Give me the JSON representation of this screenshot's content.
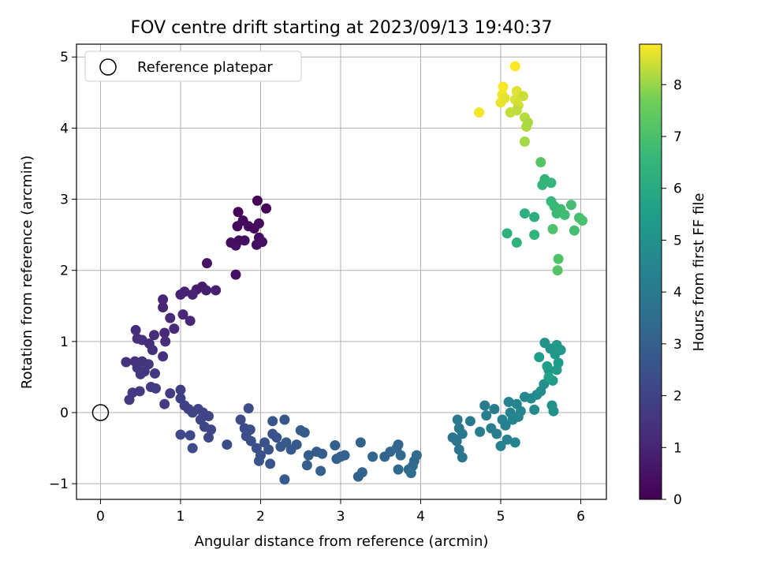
{
  "chart_data": {
    "type": "scatter",
    "title": "FOV centre drift starting at 2023/09/13 19:40:37",
    "xlabel": "Angular distance from reference (arcmin)",
    "ylabel": "Rotation from reference (arcmin)",
    "xlim": [
      -0.3,
      6.32
    ],
    "ylim": [
      -1.22,
      5.18
    ],
    "xticks": [
      0,
      1,
      2,
      3,
      4,
      5,
      6
    ],
    "yticks": [
      -1,
      0,
      1,
      2,
      3,
      4,
      5
    ],
    "grid": true,
    "legend": {
      "placement": "top-left",
      "entries": [
        "Reference platepar"
      ]
    },
    "reference_point": {
      "x": 0,
      "y": 0
    },
    "colorbar": {
      "label": "Hours from first FF file",
      "colormap": "viridis",
      "range": [
        0,
        8.78
      ],
      "ticks": [
        0,
        1,
        2,
        3,
        4,
        5,
        6,
        7,
        8
      ]
    },
    "points": [
      [
        1.72,
        2.82,
        0.15
      ],
      [
        1.78,
        2.7,
        0.2
      ],
      [
        1.96,
        2.98,
        0.1
      ],
      [
        2.07,
        2.87,
        0.18
      ],
      [
        1.71,
        2.62,
        0.25
      ],
      [
        1.85,
        2.62,
        0.3
      ],
      [
        1.92,
        2.59,
        0.22
      ],
      [
        1.98,
        2.66,
        0.28
      ],
      [
        1.63,
        2.39,
        0.35
      ],
      [
        1.73,
        2.42,
        0.32
      ],
      [
        1.8,
        2.42,
        0.38
      ],
      [
        1.95,
        2.36,
        0.4
      ],
      [
        1.98,
        2.46,
        0.33
      ],
      [
        2.02,
        2.4,
        0.42
      ],
      [
        1.69,
        1.94,
        0.5
      ],
      [
        1.33,
        2.1,
        0.55
      ],
      [
        1.69,
        2.35,
        0.45
      ],
      [
        1.27,
        1.77,
        0.7
      ],
      [
        1.2,
        1.73,
        0.75
      ],
      [
        1.32,
        1.72,
        0.8
      ],
      [
        1.44,
        1.72,
        0.85
      ],
      [
        1.05,
        1.7,
        0.9
      ],
      [
        1.15,
        1.66,
        0.95
      ],
      [
        1.0,
        1.66,
        0.92
      ],
      [
        0.78,
        1.59,
        1.0
      ],
      [
        0.78,
        1.48,
        1.05
      ],
      [
        1.03,
        1.38,
        1.1
      ],
      [
        1.12,
        1.29,
        1.12
      ],
      [
        0.87,
        1.33,
        1.15
      ],
      [
        0.92,
        1.18,
        1.18
      ],
      [
        0.8,
        1.12,
        1.2
      ],
      [
        0.67,
        1.09,
        1.22
      ],
      [
        0.81,
        1.0,
        1.25
      ],
      [
        0.44,
        1.16,
        1.28
      ],
      [
        0.46,
        1.04,
        1.3
      ],
      [
        0.52,
        1.02,
        1.33
      ],
      [
        0.61,
        0.97,
        1.35
      ],
      [
        0.65,
        0.88,
        1.38
      ],
      [
        0.78,
        0.79,
        1.4
      ],
      [
        0.32,
        0.71,
        1.45
      ],
      [
        0.43,
        0.72,
        1.47
      ],
      [
        0.52,
        0.72,
        1.5
      ],
      [
        0.46,
        0.63,
        1.52
      ],
      [
        0.6,
        0.68,
        1.55
      ],
      [
        0.55,
        0.58,
        1.57
      ],
      [
        0.5,
        0.54,
        1.6
      ],
      [
        0.68,
        0.55,
        1.62
      ],
      [
        0.4,
        0.28,
        1.65
      ],
      [
        0.36,
        0.18,
        1.68
      ],
      [
        0.49,
        0.3,
        1.7
      ],
      [
        0.63,
        0.36,
        1.72
      ],
      [
        0.69,
        0.34,
        1.75
      ],
      [
        0.87,
        0.27,
        1.78
      ],
      [
        0.8,
        0.12,
        1.8
      ],
      [
        1.0,
        0.32,
        1.82
      ],
      [
        1.0,
        0.2,
        1.85
      ],
      [
        1.05,
        0.1,
        1.92
      ],
      [
        1.1,
        0.05,
        1.95
      ],
      [
        1.15,
        0.0,
        1.98
      ],
      [
        1.22,
        0.05,
        2.0
      ],
      [
        1.28,
        0.0,
        2.02
      ],
      [
        1.35,
        -0.05,
        2.05
      ],
      [
        1.25,
        -0.1,
        2.08
      ],
      [
        1.3,
        -0.2,
        2.1
      ],
      [
        1.38,
        -0.24,
        2.12
      ],
      [
        1.35,
        -0.35,
        2.15
      ],
      [
        1.0,
        -0.31,
        2.18
      ],
      [
        1.12,
        -0.32,
        2.2
      ],
      [
        1.15,
        -0.5,
        2.22
      ],
      [
        1.58,
        -0.45,
        2.25
      ],
      [
        1.75,
        -0.1,
        2.3
      ],
      [
        1.85,
        0.06,
        2.32
      ],
      [
        1.8,
        -0.22,
        2.35
      ],
      [
        1.87,
        -0.24,
        2.37
      ],
      [
        1.82,
        -0.33,
        2.4
      ],
      [
        1.88,
        -0.4,
        2.42
      ],
      [
        1.95,
        -0.5,
        2.45
      ],
      [
        2.0,
        -0.6,
        2.47
      ],
      [
        2.05,
        -0.42,
        2.5
      ],
      [
        2.15,
        -0.3,
        2.52
      ],
      [
        2.1,
        -0.52,
        2.55
      ],
      [
        2.2,
        -0.35,
        2.57
      ],
      [
        1.98,
        -0.68,
        2.6
      ],
      [
        2.12,
        -0.72,
        2.62
      ],
      [
        2.15,
        -0.12,
        2.65
      ],
      [
        2.3,
        -0.1,
        2.67
      ],
      [
        2.25,
        -0.48,
        2.7
      ],
      [
        2.32,
        -0.42,
        2.72
      ],
      [
        2.38,
        -0.52,
        2.75
      ],
      [
        2.45,
        -0.45,
        2.77
      ],
      [
        2.3,
        -0.94,
        2.8
      ],
      [
        2.5,
        -0.25,
        2.82
      ],
      [
        2.55,
        -0.28,
        2.85
      ],
      [
        2.6,
        -0.6,
        2.87
      ],
      [
        2.58,
        -0.74,
        2.9
      ],
      [
        2.7,
        -0.55,
        2.92
      ],
      [
        2.77,
        -0.58,
        2.95
      ],
      [
        2.75,
        -0.82,
        2.97
      ],
      [
        2.93,
        -0.46,
        3.0
      ],
      [
        2.95,
        -0.65,
        3.02
      ],
      [
        3.0,
        -0.62,
        3.05
      ],
      [
        3.05,
        -0.6,
        3.07
      ],
      [
        3.25,
        -0.42,
        3.1
      ],
      [
        3.22,
        -0.9,
        3.12
      ],
      [
        3.27,
        -0.84,
        3.15
      ],
      [
        3.4,
        -0.62,
        3.17
      ],
      [
        3.55,
        -0.62,
        3.2
      ],
      [
        3.62,
        -0.55,
        3.22
      ],
      [
        3.7,
        -0.5,
        3.25
      ],
      [
        3.72,
        -0.45,
        3.27
      ],
      [
        3.75,
        -0.6,
        3.3
      ],
      [
        3.72,
        -0.8,
        3.32
      ],
      [
        3.85,
        -0.8,
        3.35
      ],
      [
        3.9,
        -0.75,
        3.37
      ],
      [
        3.92,
        -0.68,
        3.4
      ],
      [
        3.95,
        -0.6,
        3.42
      ],
      [
        3.88,
        -0.85,
        3.45
      ],
      [
        4.4,
        -0.35,
        3.75
      ],
      [
        4.45,
        -0.4,
        3.8
      ],
      [
        4.48,
        -0.52,
        3.85
      ],
      [
        4.52,
        -0.63,
        3.9
      ],
      [
        4.48,
        -0.22,
        3.92
      ],
      [
        4.52,
        -0.3,
        3.95
      ],
      [
        4.46,
        -0.1,
        4.0
      ],
      [
        4.62,
        -0.12,
        4.05
      ],
      [
        4.74,
        -0.27,
        4.1
      ],
      [
        4.8,
        0.1,
        4.15
      ],
      [
        4.82,
        -0.04,
        4.18
      ],
      [
        4.88,
        -0.22,
        4.2
      ],
      [
        4.92,
        0.05,
        4.22
      ],
      [
        4.95,
        -0.3,
        4.25
      ],
      [
        5.0,
        -0.47,
        4.3
      ],
      [
        5.02,
        -0.1,
        4.32
      ],
      [
        5.06,
        -0.18,
        4.35
      ],
      [
        5.08,
        -0.38,
        4.38
      ],
      [
        5.1,
        0.15,
        4.4
      ],
      [
        5.12,
        0.0,
        4.42
      ],
      [
        5.15,
        -0.1,
        4.45
      ],
      [
        5.18,
        -0.42,
        4.48
      ],
      [
        5.2,
        0.12,
        4.5
      ],
      [
        5.22,
        -0.06,
        4.52
      ],
      [
        5.25,
        0.02,
        4.55
      ],
      [
        5.3,
        0.22,
        4.6
      ],
      [
        5.38,
        0.2,
        4.65
      ],
      [
        5.42,
        0.04,
        4.7
      ],
      [
        5.45,
        0.25,
        4.75
      ],
      [
        5.5,
        0.3,
        4.8
      ],
      [
        5.54,
        0.4,
        4.85
      ],
      [
        5.6,
        0.6,
        4.9
      ],
      [
        5.64,
        0.1,
        4.95
      ],
      [
        5.66,
        0.02,
        5.0
      ],
      [
        5.55,
        0.98,
        5.1
      ],
      [
        5.62,
        0.9,
        5.15
      ],
      [
        5.68,
        0.82,
        5.2
      ],
      [
        5.7,
        0.95,
        5.25
      ],
      [
        5.75,
        0.88,
        5.3
      ],
      [
        5.72,
        0.7,
        5.35
      ],
      [
        5.65,
        0.45,
        5.4
      ],
      [
        5.7,
        0.6,
        5.45
      ],
      [
        5.48,
        0.78,
        5.5
      ],
      [
        5.58,
        0.65,
        5.55
      ],
      [
        5.6,
        0.5,
        5.6
      ],
      [
        5.42,
        2.75,
        6.2
      ],
      [
        5.3,
        2.8,
        6.25
      ],
      [
        5.08,
        2.52,
        6.3
      ],
      [
        5.2,
        2.39,
        6.35
      ],
      [
        5.42,
        2.5,
        6.4
      ],
      [
        5.52,
        3.2,
        6.45
      ],
      [
        5.55,
        3.28,
        6.5
      ],
      [
        5.63,
        3.23,
        6.55
      ],
      [
        5.63,
        2.97,
        6.6
      ],
      [
        5.67,
        2.9,
        6.65
      ],
      [
        5.7,
        2.8,
        6.7
      ],
      [
        5.75,
        2.86,
        6.75
      ],
      [
        5.8,
        2.78,
        6.8
      ],
      [
        5.88,
        2.92,
        6.85
      ],
      [
        5.92,
        2.56,
        6.9
      ],
      [
        5.98,
        2.74,
        6.95
      ],
      [
        6.02,
        2.7,
        7.0
      ],
      [
        5.65,
        2.58,
        7.05
      ],
      [
        5.72,
        2.16,
        7.1
      ],
      [
        5.71,
        2.0,
        7.15
      ],
      [
        5.5,
        3.52,
        7.2
      ],
      [
        4.73,
        4.22,
        8.7
      ],
      [
        5.03,
        4.58,
        8.75
      ],
      [
        5.02,
        4.47,
        8.7
      ],
      [
        5.0,
        4.36,
        8.65
      ],
      [
        5.05,
        4.42,
        8.6
      ],
      [
        5.18,
        4.87,
        8.78
      ],
      [
        5.2,
        4.52,
        8.55
      ],
      [
        5.18,
        4.4,
        8.5
      ],
      [
        5.22,
        4.32,
        8.45
      ],
      [
        5.28,
        4.45,
        8.4
      ],
      [
        5.12,
        4.22,
        8.35
      ],
      [
        5.2,
        4.25,
        8.3
      ],
      [
        5.3,
        4.15,
        8.25
      ],
      [
        5.32,
        4.02,
        8.2
      ],
      [
        5.34,
        4.08,
        8.15
      ],
      [
        5.3,
        3.81,
        8.1
      ]
    ]
  }
}
